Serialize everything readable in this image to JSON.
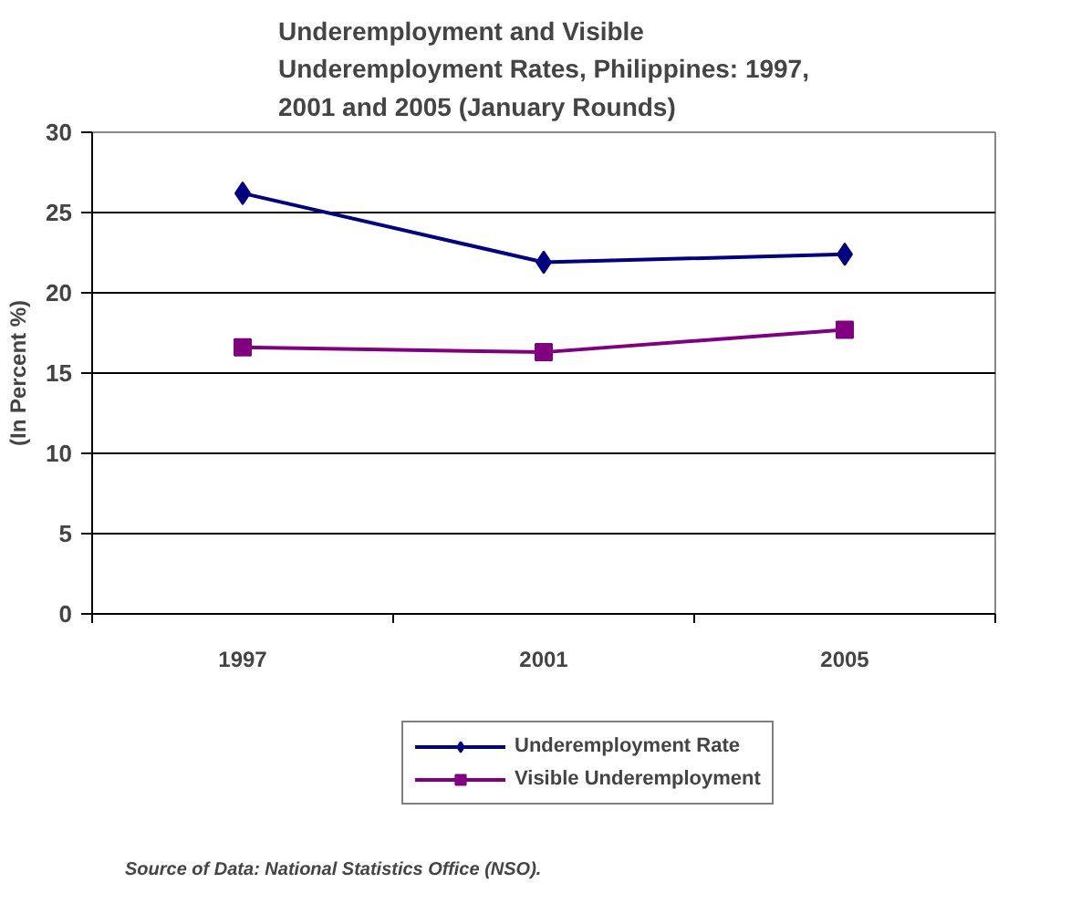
{
  "chart_data": {
    "type": "line",
    "title": "Underemployment and Visible Underemployment Rates, Philippines: 1997, 2001 and 2005 (January Rounds)",
    "ylabel": "(In Percent %)",
    "categories": [
      "1997",
      "2001",
      "2005"
    ],
    "series": [
      {
        "name": "Underemployment Rate",
        "color": "#000080",
        "marker": "diamond",
        "values": [
          26.2,
          21.9,
          22.4
        ]
      },
      {
        "name": "Visible Underemployment",
        "color": "#800080",
        "marker": "square",
        "values": [
          16.6,
          16.3,
          17.7
        ]
      }
    ],
    "ylim": [
      0,
      30
    ],
    "yticks": [
      0,
      5,
      10,
      15,
      20,
      25,
      30
    ],
    "grid": "y",
    "legend": "bottom",
    "line_style": "solid",
    "annotations": [
      "Source of Data:  National Statistics Office (NSO)."
    ]
  }
}
